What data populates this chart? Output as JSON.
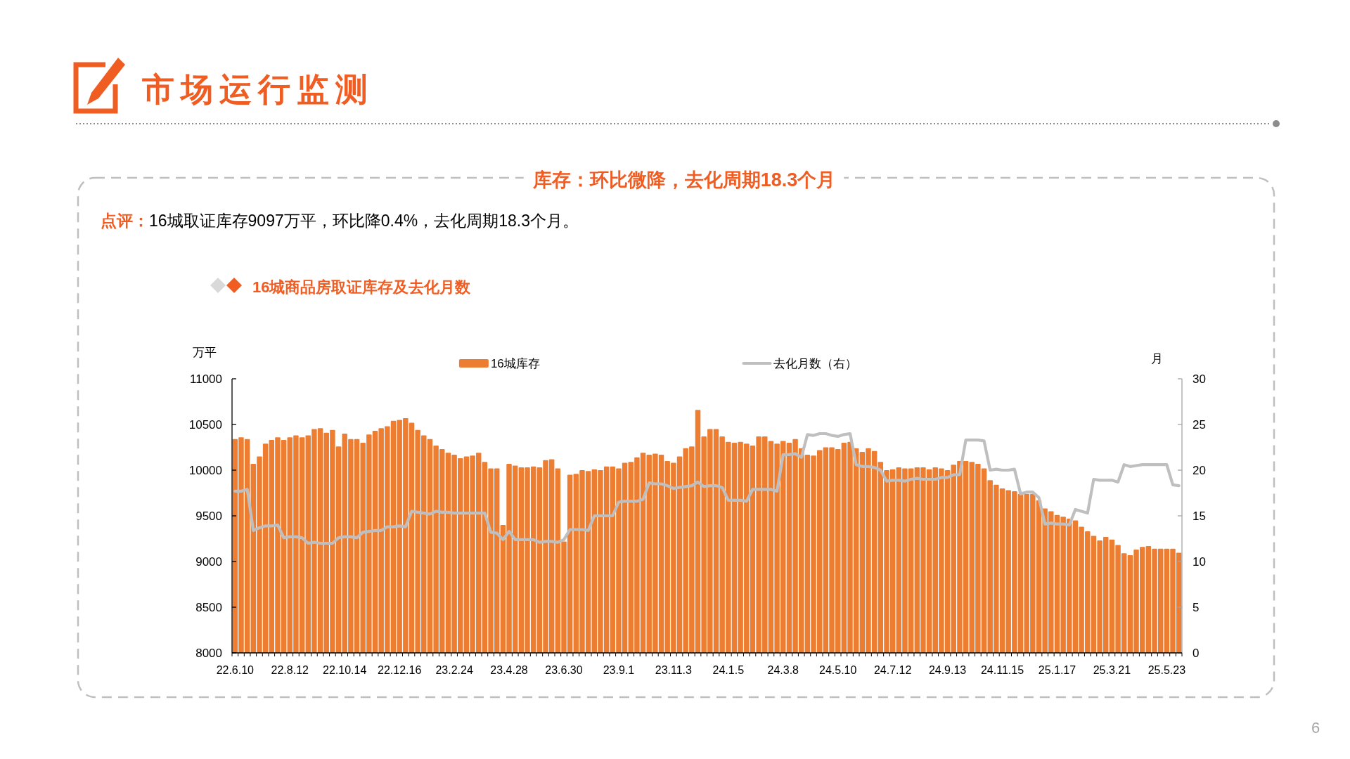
{
  "chart_data": {
    "type": "bar",
    "title": "16城商品房取证库存及去化月数",
    "subtitle": "库存：环比微降，去化周期18.3个月",
    "annotations": [
      "市场运行监测",
      "点评：",
      "16城取证库存9097万平，环比降0.4%，去化周期18.3个月。",
      "6"
    ],
    "ylabel": "万平",
    "y2label": "月",
    "legend": "top",
    "categories": [
      "22.6.10",
      null,
      null,
      null,
      null,
      null,
      null,
      null,
      null,
      "22.8.12",
      null,
      null,
      null,
      null,
      null,
      null,
      null,
      null,
      "22.10.14",
      null,
      null,
      null,
      null,
      null,
      null,
      null,
      null,
      "22.12.16",
      null,
      null,
      null,
      null,
      null,
      null,
      null,
      null,
      "23.2.24",
      null,
      null,
      null,
      null,
      null,
      null,
      null,
      null,
      "23.4.28",
      null,
      null,
      null,
      null,
      null,
      null,
      null,
      null,
      "23.6.30",
      null,
      null,
      null,
      null,
      null,
      null,
      null,
      null,
      "23.9.1",
      null,
      null,
      null,
      null,
      null,
      null,
      null,
      null,
      "23.11.3",
      null,
      null,
      null,
      null,
      null,
      null,
      null,
      null,
      "24.1.5",
      null,
      null,
      null,
      null,
      null,
      null,
      null,
      null,
      "24.3.8",
      null,
      null,
      null,
      null,
      null,
      null,
      null,
      null,
      "24.5.10",
      null,
      null,
      null,
      null,
      null,
      null,
      null,
      null,
      "24.7.12",
      null,
      null,
      null,
      null,
      null,
      null,
      null,
      null,
      "24.9.13",
      null,
      null,
      null,
      null,
      null,
      null,
      null,
      null,
      "24.11.15",
      null,
      null,
      null,
      null,
      null,
      null,
      null,
      null,
      "25.1.17",
      null,
      null,
      null,
      null,
      null,
      null,
      null,
      null,
      "25.3.21",
      null,
      null,
      null,
      null,
      null,
      null,
      null,
      null,
      "25.5.23",
      null,
      null
    ],
    "series": [
      {
        "name": "16城库存",
        "color": "#ed7d31",
        "values": [
          10340,
          10360,
          10340,
          10070,
          10150,
          10290,
          10330,
          10360,
          10330,
          10360,
          10380,
          10360,
          10380,
          10450,
          10460,
          10410,
          10440,
          10260,
          10400,
          10340,
          10340,
          10300,
          10390,
          10430,
          10460,
          10480,
          10540,
          10550,
          10570,
          10520,
          10440,
          10380,
          10340,
          10270,
          10230,
          10190,
          10170,
          10130,
          10150,
          10160,
          10190,
          10090,
          10020,
          10020,
          9400,
          10070,
          10050,
          10030,
          10030,
          10040,
          10030,
          10110,
          10120,
          10020,
          9220,
          9950,
          9960,
          10000,
          9990,
          10010,
          10000,
          10040,
          10040,
          10020,
          10080,
          10090,
          10140,
          10190,
          10170,
          10180,
          10170,
          10100,
          10080,
          10150,
          10240,
          10260,
          10660,
          10370,
          10450,
          10450,
          10370,
          10310,
          10300,
          10310,
          10290,
          10270,
          10370,
          10370,
          10320,
          10290,
          10320,
          10300,
          10340,
          10240,
          10170,
          10160,
          10220,
          10250,
          10250,
          10230,
          10300,
          10310,
          10240,
          10200,
          10240,
          10210,
          10090,
          10000,
          10010,
          10030,
          10020,
          10020,
          10030,
          10030,
          10010,
          10030,
          10020,
          10000,
          10060,
          10100,
          10100,
          10090,
          10070,
          10020,
          9890,
          9840,
          9800,
          9780,
          9770,
          9740,
          9740,
          9740,
          9670,
          9580,
          9550,
          9510,
          9490,
          9470,
          9450,
          9380,
          9330,
          9280,
          9230,
          9270,
          9240,
          9180,
          9090,
          9070,
          9130,
          9160,
          9170,
          9140,
          9140,
          9140,
          9140,
          9097
        ]
      },
      {
        "name": "去化月数（右）",
        "type": "line",
        "axis": "y2",
        "color": "#bfbfbf",
        "values": [
          17.7,
          17.7,
          17.9,
          13.4,
          13.7,
          13.9,
          13.9,
          14.0,
          12.6,
          12.7,
          12.7,
          12.6,
          12.0,
          12.1,
          12.0,
          12.0,
          12.0,
          12.6,
          12.7,
          12.7,
          12.6,
          13.2,
          13.3,
          13.4,
          13.4,
          13.8,
          13.8,
          13.9,
          13.8,
          15.5,
          15.4,
          15.3,
          15.2,
          15.5,
          15.4,
          15.4,
          15.3,
          15.3,
          15.3,
          15.3,
          15.3,
          15.3,
          13.2,
          13.1,
          12.4,
          13.3,
          12.4,
          12.4,
          12.4,
          12.4,
          12.1,
          12.2,
          12.2,
          12.1,
          12.4,
          13.5,
          13.5,
          13.5,
          13.4,
          15.0,
          15.0,
          15.0,
          15.0,
          16.5,
          16.6,
          16.6,
          16.6,
          16.8,
          18.6,
          18.5,
          18.5,
          18.3,
          18.0,
          18.1,
          18.2,
          18.3,
          18.7,
          18.2,
          18.3,
          18.3,
          18.1,
          16.7,
          16.7,
          16.7,
          16.6,
          17.9,
          17.9,
          17.9,
          17.9,
          17.7,
          21.7,
          21.7,
          21.8,
          21.4,
          23.9,
          23.8,
          24.0,
          24.0,
          23.8,
          23.7,
          23.9,
          24.0,
          20.6,
          20.4,
          20.4,
          20.3,
          20.0,
          18.8,
          18.9,
          18.9,
          18.8,
          19.0,
          19.1,
          19.0,
          19.0,
          19.0,
          19.2,
          19.2,
          19.5,
          19.5,
          23.3,
          23.3,
          23.3,
          23.2,
          20.0,
          20.1,
          20.0,
          20.0,
          20.1,
          17.4,
          17.6,
          17.6,
          17.0,
          14.1,
          14.2,
          14.1,
          14.1,
          14.0,
          15.7,
          15.5,
          15.3,
          19.0,
          18.9,
          18.9,
          18.9,
          18.7,
          20.6,
          20.4,
          20.5,
          20.6,
          20.6,
          20.6,
          20.6,
          20.6,
          18.4,
          18.3
        ]
      }
    ],
    "ylim": [
      8000,
      11000
    ],
    "yticks": [
      8000,
      8500,
      9000,
      9500,
      10000,
      10500,
      11000
    ],
    "y2lim": [
      0,
      30
    ],
    "y2ticks": [
      0,
      5,
      10,
      15,
      20,
      25,
      30
    ]
  }
}
